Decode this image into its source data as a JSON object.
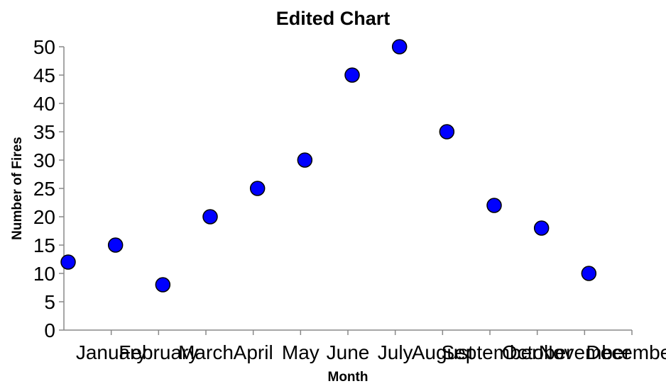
{
  "chart_data": {
    "type": "scatter",
    "title": "Edited Chart",
    "xlabel": "Month",
    "ylabel": "Number of Fires",
    "categories": [
      "January",
      "February",
      "March",
      "April",
      "May",
      "June",
      "July",
      "August",
      "September",
      "October",
      "November",
      "December"
    ],
    "values": [
      12,
      15,
      8,
      20,
      25,
      30,
      45,
      50,
      35,
      22,
      18,
      10
    ],
    "ylim": [
      0,
      50
    ],
    "yticks": [
      0,
      5,
      10,
      15,
      20,
      25,
      30,
      35,
      40,
      45,
      50
    ],
    "point_color": "#0000ff",
    "grid": false,
    "legend": "none"
  }
}
